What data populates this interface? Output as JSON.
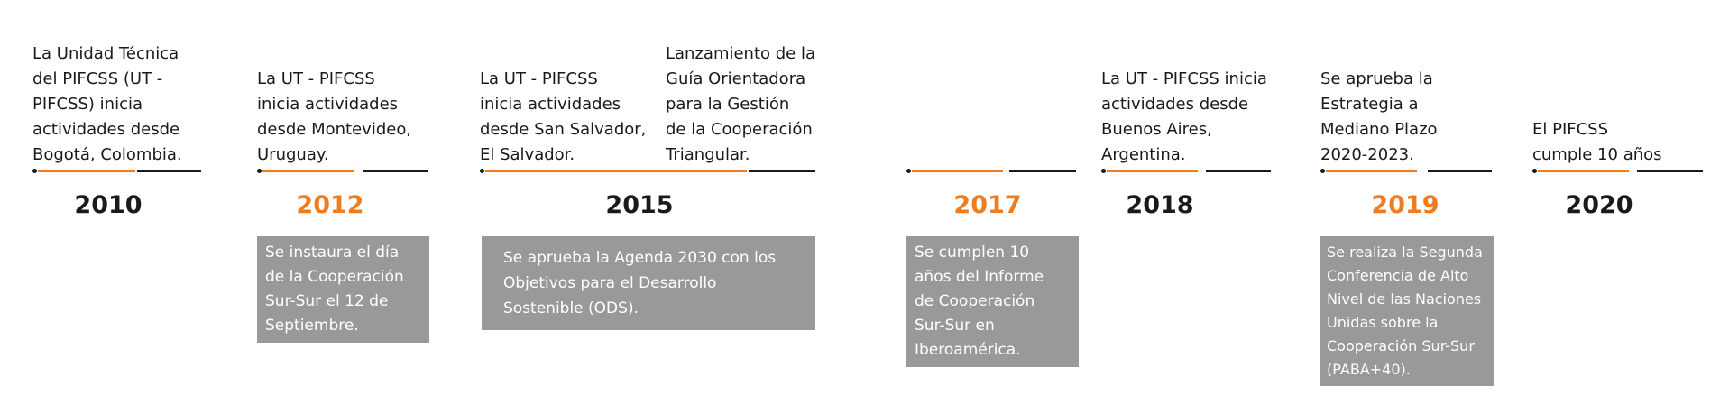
{
  "colors": {
    "accent": "#ef7d1f",
    "dark": "#1a1a1a",
    "box": "#999999"
  },
  "events": [
    {
      "year": "2010",
      "year_color": "dark",
      "above": [
        "La Unidad Técnica",
        "del PIFCSS (UT -",
        "PIFCSS) inicia",
        "actividades desde",
        "Bogotá, Colombia."
      ],
      "above2": [],
      "below": []
    },
    {
      "year": "2012",
      "year_color": "accent",
      "above": [
        "La  UT - PIFCSS",
        "inicia actividades",
        "desde Montevideo,",
        "Uruguay."
      ],
      "above2": [],
      "below": [
        "Se instaura el día",
        "de la Cooperación",
        "Sur-Sur el 12 de",
        "Septiembre."
      ]
    },
    {
      "year": "2015",
      "year_color": "dark",
      "above": [
        "La UT - PIFCSS",
        "inicia actividades",
        "desde San Salvador,",
        "El Salvador."
      ],
      "above2": [
        "Lanzamiento de la",
        "Guía Orientadora",
        "para la Gestión",
        "de la Cooperación",
        "Triangular."
      ],
      "below": [
        "Se aprueba la Agenda 2030 con los",
        "Objetivos para el Desarrollo",
        "Sostenible (ODS)."
      ]
    },
    {
      "year": "2017",
      "year_color": "accent",
      "above": [],
      "above2": [],
      "below": [
        "Se cumplen 10",
        "años del Informe",
        "de Cooperación",
        "Sur-Sur en",
        "Iberoamérica."
      ]
    },
    {
      "year": "2018",
      "year_color": "dark",
      "above": [
        "La UT - PIFCSS inicia",
        "actividades desde",
        "Buenos Aires,",
        "Argentina."
      ],
      "above2": [],
      "below": []
    },
    {
      "year": "2019",
      "year_color": "accent",
      "above": [
        "Se aprueba la",
        "Estrategia a",
        "Mediano Plazo",
        "2020-2023."
      ],
      "above2": [],
      "below": [
        "Se realiza la Segunda",
        "Conferencia de Alto",
        "Nivel de las Naciones",
        "Unidas sobre la",
        "Cooperación Sur-Sur",
        "(PABA+40)."
      ]
    },
    {
      "year": "2020",
      "year_color": "dark",
      "above": [
        "El PIFCSS",
        "cumple 10 años"
      ],
      "above2": [],
      "below": []
    }
  ]
}
